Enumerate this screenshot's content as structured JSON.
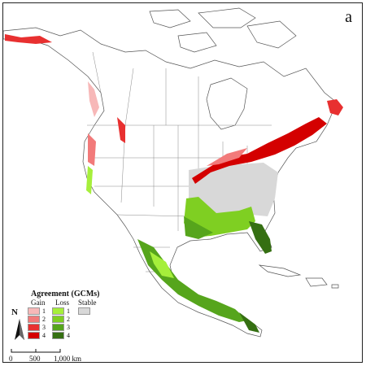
{
  "panel_label": "a",
  "legend": {
    "title": "Agreement (GCMs)",
    "groups": {
      "gain": {
        "label": "Gain",
        "levels": [
          "1",
          "2",
          "3",
          "4"
        ],
        "colors": [
          "#f7b8b8",
          "#f27a7a",
          "#e83030",
          "#d40000"
        ]
      },
      "loss": {
        "label": "Loss",
        "levels": [
          "1",
          "2",
          "3",
          "4"
        ],
        "colors": [
          "#a6ef3b",
          "#7fcf22",
          "#56a51c",
          "#356f12"
        ]
      },
      "stable": {
        "label": "Stable",
        "color": "#d8d8d8"
      }
    }
  },
  "north_arrow": "N",
  "scale_bar": {
    "ticks": [
      "0",
      "500",
      "1,000 km"
    ]
  },
  "colors": {
    "land": "#ffffff",
    "boundary": "#555555",
    "frame": "#222222"
  }
}
